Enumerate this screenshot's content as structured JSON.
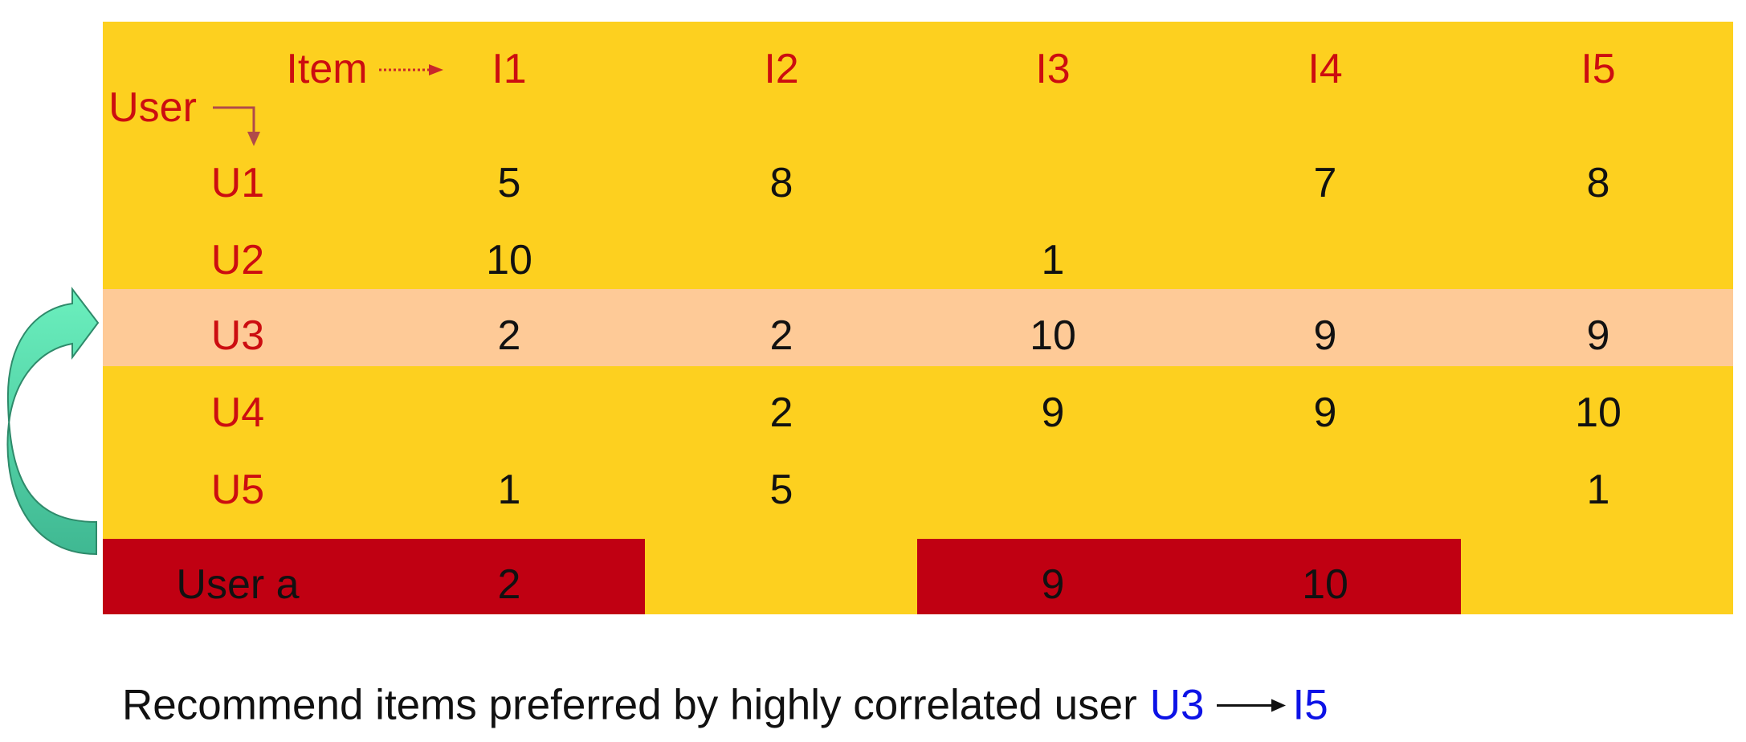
{
  "colors": {
    "table_bg": "#FDD01F",
    "highlight_row": "#FECA97",
    "target_row_cells": "#C00012",
    "header_red": "#CC0D10",
    "emphasis_blue": "#0C12E6",
    "curved_arrow": "#4FDCA8"
  },
  "headers": {
    "item_label": "Item",
    "user_label": "User",
    "items": [
      "I1",
      "I2",
      "I3",
      "I4",
      "I5"
    ]
  },
  "ratings": [
    {
      "user": "U1",
      "values": [
        "5",
        "8",
        "",
        "7",
        "8"
      ]
    },
    {
      "user": "U2",
      "values": [
        "10",
        "",
        "1",
        "",
        ""
      ]
    },
    {
      "user": "U3",
      "values": [
        "2",
        "2",
        "10",
        "9",
        "9"
      ],
      "highlighted": true
    },
    {
      "user": "U4",
      "values": [
        "",
        "2",
        "9",
        "9",
        "10"
      ]
    },
    {
      "user": "U5",
      "values": [
        "1",
        "5",
        "",
        "",
        "1"
      ]
    }
  ],
  "target_user": {
    "label": "User a",
    "values": [
      "2",
      "",
      "9",
      "10",
      ""
    ],
    "red_cells": [
      true,
      false,
      true,
      true,
      false
    ]
  },
  "footer": {
    "text": "Recommend items preferred by highly correlated user",
    "user": "U3",
    "item": "I5"
  },
  "icons": {
    "item_arrow": "dotted-arrow-right-icon",
    "user_arrow": "elbow-arrow-down-icon",
    "correlation_arrow": "curved-arrow-up-right-icon",
    "footer_arrow": "arrow-right-icon"
  }
}
